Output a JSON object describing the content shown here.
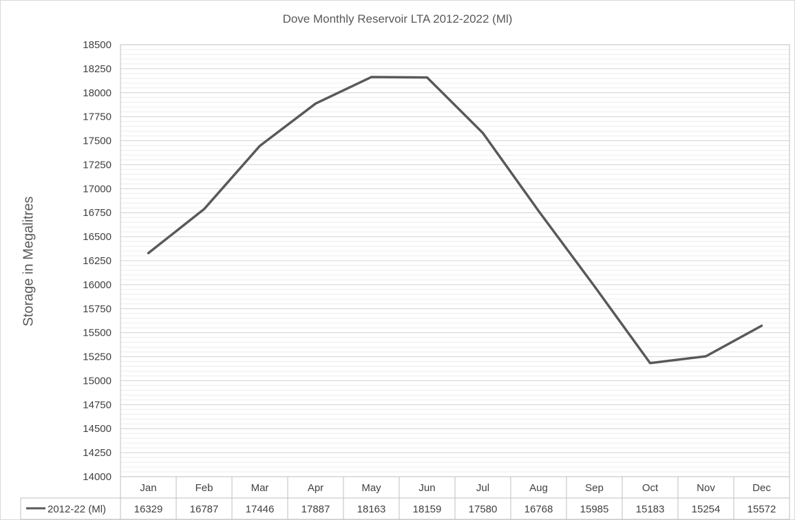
{
  "chart_data": {
    "type": "line",
    "title": "Dove Monthly Reservoir  LTA 2012-2022 (Ml)",
    "ylabel": "Storage in Megalitres",
    "xlabel": "",
    "categories": [
      "Jan",
      "Feb",
      "Mar",
      "Apr",
      "May",
      "Jun",
      "Jul",
      "Aug",
      "Sep",
      "Oct",
      "Nov",
      "Dec"
    ],
    "series": [
      {
        "name": "2012-22 (Ml)",
        "values": [
          16329,
          16787,
          17446,
          17887,
          18163,
          18159,
          17580,
          16768,
          15985,
          15183,
          15254,
          15572
        ],
        "color": "#595959"
      }
    ],
    "ylim": [
      14000,
      18500
    ],
    "yticks": [
      14000,
      14250,
      14500,
      14750,
      15000,
      15250,
      15500,
      15750,
      16000,
      16250,
      16500,
      16750,
      17000,
      17250,
      17500,
      17750,
      18000,
      18250,
      18500
    ],
    "grid": true,
    "legend": "data-table-below",
    "data_table": true
  }
}
